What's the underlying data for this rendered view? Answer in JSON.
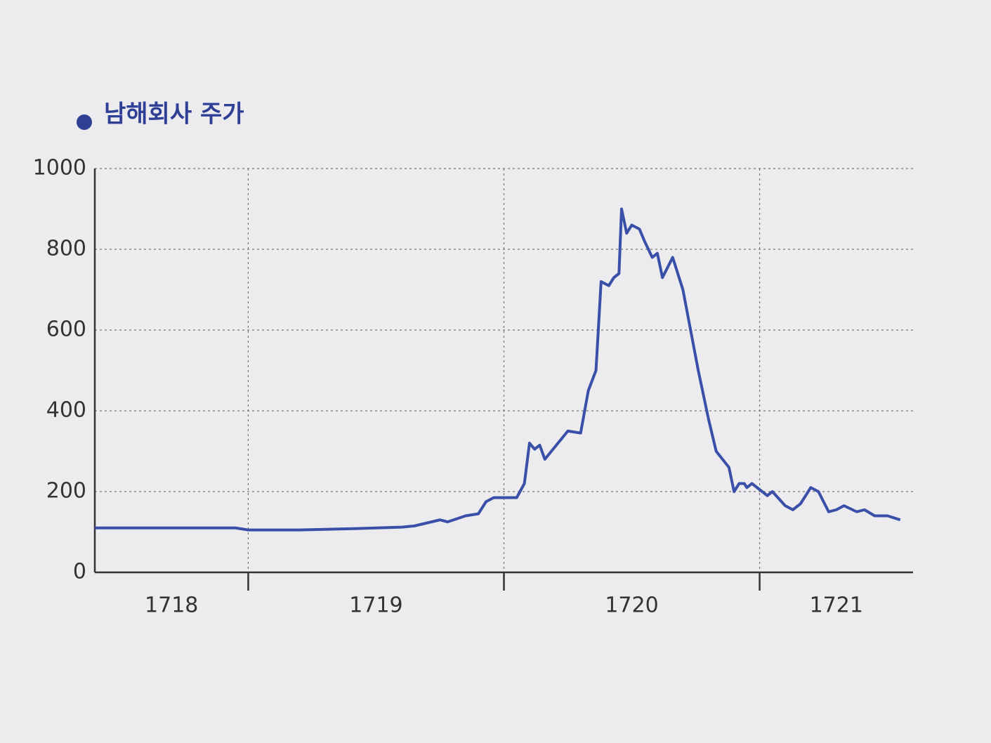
{
  "chart_data": {
    "type": "line",
    "title": "남해회사 주가",
    "x": [
      1718.4,
      1718.6,
      1718.8,
      1718.95,
      1719.0,
      1719.2,
      1719.4,
      1719.6,
      1719.65,
      1719.75,
      1719.78,
      1719.85,
      1719.9,
      1719.93,
      1719.96,
      1720.05,
      1720.08,
      1720.1,
      1720.12,
      1720.14,
      1720.16,
      1720.25,
      1720.3,
      1720.33,
      1720.36,
      1720.38,
      1720.41,
      1720.43,
      1720.45,
      1720.46,
      1720.48,
      1720.5,
      1720.53,
      1720.55,
      1720.58,
      1720.6,
      1720.62,
      1720.66,
      1720.7,
      1720.76,
      1720.8,
      1720.83,
      1720.88,
      1720.9,
      1720.92,
      1720.94,
      1720.95,
      1720.97,
      1721.03,
      1721.05,
      1721.1,
      1721.13,
      1721.16,
      1721.2,
      1721.23,
      1721.27,
      1721.3,
      1721.33,
      1721.38,
      1721.41,
      1721.45,
      1721.5,
      1721.55
    ],
    "series": [
      {
        "name": "남해회사 주가",
        "color": "#3a4fa8",
        "values": [
          110,
          110,
          110,
          110,
          105,
          105,
          108,
          112,
          115,
          130,
          125,
          140,
          145,
          175,
          185,
          185,
          220,
          320,
          305,
          315,
          280,
          350,
          345,
          450,
          500,
          720,
          710,
          730,
          740,
          900,
          840,
          860,
          850,
          820,
          780,
          790,
          730,
          780,
          700,
          500,
          380,
          300,
          260,
          200,
          220,
          220,
          210,
          220,
          190,
          200,
          165,
          155,
          170,
          210,
          200,
          150,
          155,
          165,
          150,
          155,
          140,
          140,
          130
        ]
      }
    ],
    "xlim": [
      1718.4,
      1721.6
    ],
    "xticks": [
      1718,
      1719,
      1720,
      1721
    ],
    "ylim": [
      0,
      1000
    ],
    "yticks": [
      0,
      200,
      400,
      600,
      800,
      1000
    ],
    "grid": true
  }
}
